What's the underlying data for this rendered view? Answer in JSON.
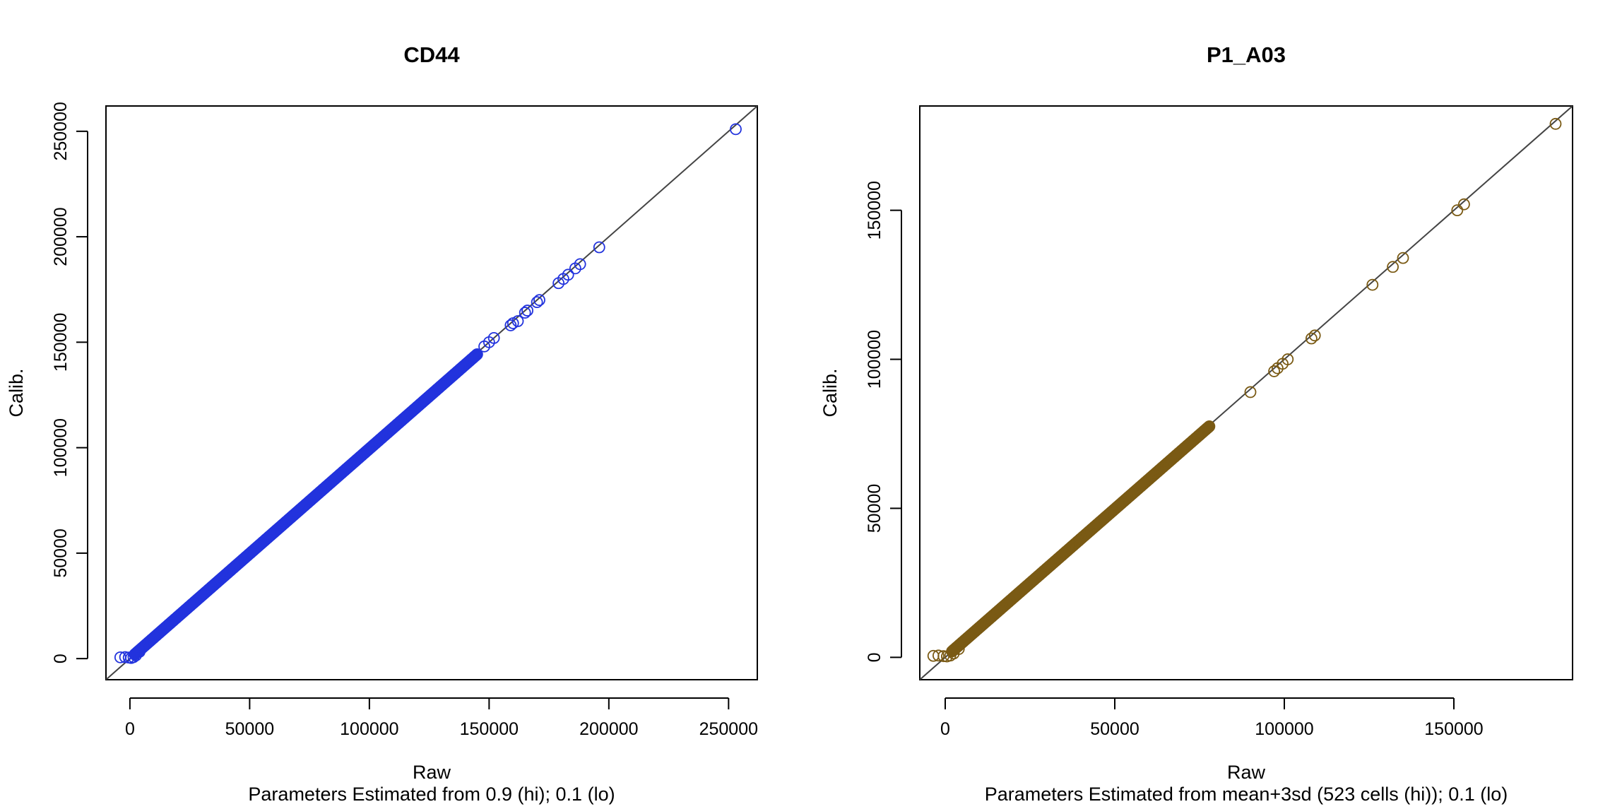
{
  "chart_data": [
    {
      "type": "scatter",
      "title": "CD44",
      "xlabel": "Raw",
      "ylabel": "Calib.",
      "subtitle": "Parameters Estimated from 0.9 (hi); 0.1 (lo)",
      "xlim": [
        -10000,
        262000
      ],
      "ylim": [
        -10000,
        262000
      ],
      "xticks": [
        0,
        50000,
        100000,
        150000,
        200000,
        250000
      ],
      "yticks": [
        0,
        50000,
        100000,
        150000,
        200000,
        250000
      ],
      "xtick_labels": [
        "0",
        "50000",
        "100000",
        "150000",
        "200000",
        "250000"
      ],
      "ytick_labels": [
        "0",
        "50000",
        "100000",
        "150000",
        "200000",
        "250000"
      ],
      "reference_line": "y = x",
      "point_color": "#2233dd",
      "grid": false,
      "legend": "none",
      "series": [
        {
          "dense_segment": [
            2000,
            145000
          ],
          "low_end": [
            [
              -4000,
              600
            ],
            [
              -2000,
              700
            ],
            [
              -500,
              500
            ],
            [
              500,
              300
            ],
            [
              1500,
              700
            ],
            [
              2500,
              1500
            ],
            [
              4000,
              3200
            ]
          ],
          "outliers": [
            [
              148000,
              148000
            ],
            [
              150000,
              150000
            ],
            [
              152000,
              152000
            ],
            [
              159000,
              158000
            ],
            [
              160000,
              159000
            ],
            [
              162000,
              160000
            ],
            [
              165000,
              164000
            ],
            [
              166000,
              165000
            ],
            [
              170000,
              169000
            ],
            [
              171000,
              170000
            ],
            [
              179000,
              178000
            ],
            [
              181000,
              180000
            ],
            [
              183000,
              182000
            ],
            [
              186000,
              185000
            ],
            [
              188000,
              187000
            ],
            [
              196000,
              195000
            ],
            [
              253000,
              251000
            ]
          ]
        }
      ]
    },
    {
      "type": "scatter",
      "title": "P1_A03",
      "xlabel": "Raw",
      "ylabel": "Calib.",
      "subtitle": "Parameters Estimated from mean+3sd (523 cells (hi)); 0.1 (lo)",
      "xlim": [
        -7500,
        185000
      ],
      "ylim": [
        -7500,
        185000
      ],
      "xticks": [
        0,
        50000,
        100000,
        150000
      ],
      "yticks": [
        0,
        50000,
        100000,
        150000
      ],
      "xtick_labels": [
        "0",
        "50000",
        "100000",
        "150000"
      ],
      "ytick_labels": [
        "0",
        "50000",
        "100000",
        "150000"
      ],
      "reference_line": "y = x",
      "point_color": "#7a5a14",
      "grid": false,
      "legend": "none",
      "series": [
        {
          "dense_segment": [
            2000,
            78000
          ],
          "low_end": [
            [
              -3500,
              500
            ],
            [
              -2000,
              600
            ],
            [
              -500,
              400
            ],
            [
              500,
              300
            ],
            [
              1500,
              600
            ],
            [
              2500,
              1300
            ],
            [
              4000,
              2800
            ]
          ],
          "outliers": [
            [
              90000,
              89000
            ],
            [
              97000,
              96000
            ],
            [
              98000,
              97000
            ],
            [
              99500,
              98500
            ],
            [
              101000,
              100000
            ],
            [
              108000,
              107000
            ],
            [
              109000,
              108000
            ],
            [
              126000,
              125000
            ],
            [
              132000,
              131000
            ],
            [
              135000,
              134000
            ],
            [
              151000,
              150000
            ],
            [
              153000,
              152000
            ],
            [
              180000,
              179000
            ]
          ]
        }
      ]
    }
  ]
}
